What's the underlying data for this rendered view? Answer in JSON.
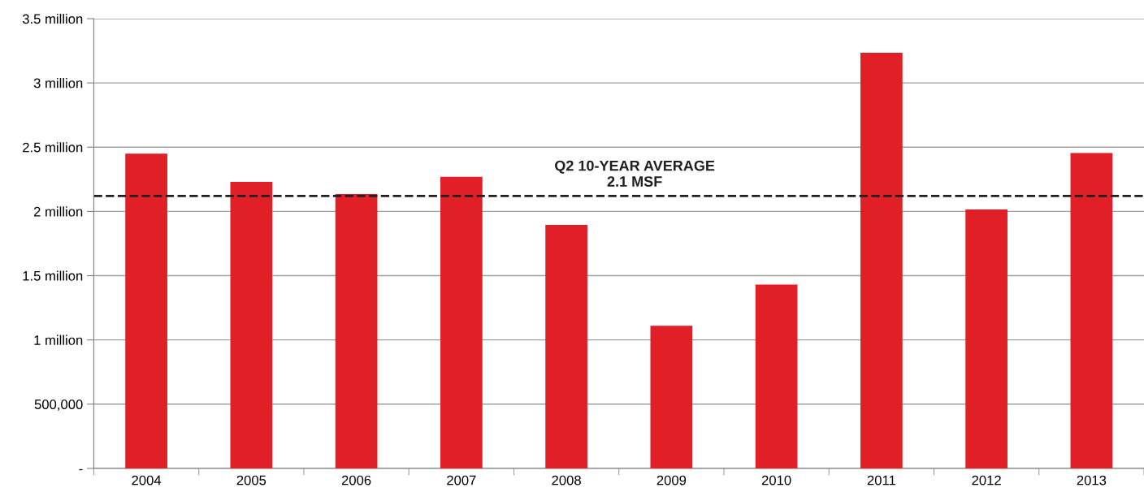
{
  "chart_data": {
    "type": "bar",
    "categories": [
      "2004",
      "2005",
      "2006",
      "2007",
      "2008",
      "2009",
      "2010",
      "2011",
      "2012",
      "2013"
    ],
    "values": [
      2450000,
      2230000,
      2135000,
      2270000,
      1895000,
      1110000,
      1430000,
      3235000,
      2015000,
      2455000
    ],
    "color": "#e01f26",
    "ylim": [
      0,
      3500000
    ],
    "yticks": [
      {
        "value": 0,
        "label": "-"
      },
      {
        "value": 500000,
        "label": "500,000"
      },
      {
        "value": 1000000,
        "label": "1 million"
      },
      {
        "value": 1500000,
        "label": "1.5 million"
      },
      {
        "value": 2000000,
        "label": "2 million"
      },
      {
        "value": 2500000,
        "label": "2.5 million"
      },
      {
        "value": 3000000,
        "label": "3 million"
      },
      {
        "value": 3500000,
        "label": "3.5 million"
      }
    ],
    "grid": "y",
    "ref_lines": [
      {
        "axis": "y",
        "value": 2120000,
        "label": "Q2 10-YEAR AVERAGE\n2.1 MSF",
        "color": "#231f20",
        "line_style": "dashed"
      }
    ]
  }
}
